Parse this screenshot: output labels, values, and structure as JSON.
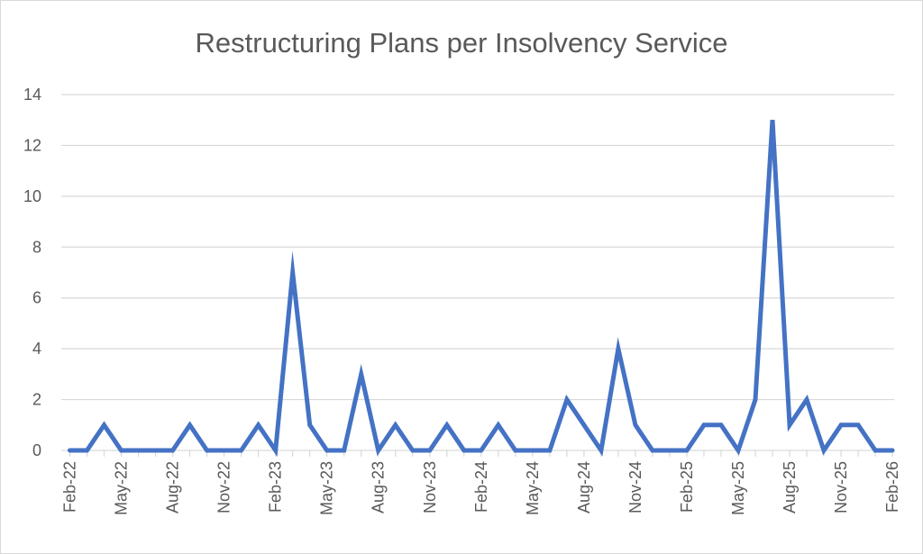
{
  "chart_data": {
    "type": "line",
    "title": "Restructuring Plans per Insolvency Service",
    "xlabel": "",
    "ylabel": "",
    "ylim": [
      0,
      14
    ],
    "yticks": [
      "0",
      "2",
      "4",
      "6",
      "8",
      "10",
      "12",
      "14"
    ],
    "xtick_labels": [
      "Feb-22",
      "May-22",
      "Aug-22",
      "Nov-22",
      "Feb-23",
      "May-23",
      "Aug-23",
      "Nov-23",
      "Feb-24",
      "May-24",
      "Aug-24",
      "Nov-24",
      "Feb-25",
      "May-25",
      "Aug-25",
      "Nov-25",
      "Feb-26"
    ],
    "grid": true,
    "line_color": "#4472C4",
    "x": [
      "Feb-22",
      "Mar-22",
      "Apr-22",
      "May-22",
      "Jun-22",
      "Jul-22",
      "Aug-22",
      "Sep-22",
      "Oct-22",
      "Nov-22",
      "Dec-22",
      "Jan-23",
      "Feb-23",
      "Mar-23",
      "Apr-23",
      "May-23",
      "Jun-23",
      "Jul-23",
      "Aug-23",
      "Sep-23",
      "Oct-23",
      "Nov-23",
      "Dec-23",
      "Jan-24",
      "Feb-24",
      "Mar-24",
      "Apr-24",
      "May-24",
      "Jun-24",
      "Jul-24",
      "Aug-24",
      "Sep-24",
      "Oct-24",
      "Nov-24",
      "Dec-24",
      "Jan-25",
      "Feb-25",
      "Mar-25",
      "Apr-25",
      "May-25",
      "Jun-25",
      "Jul-25",
      "Aug-25",
      "Sep-25",
      "Oct-25",
      "Nov-25",
      "Dec-25",
      "Jan-26",
      "Feb-26"
    ],
    "values": [
      0,
      0,
      1,
      0,
      0,
      0,
      0,
      1,
      0,
      0,
      0,
      1,
      0,
      7,
      1,
      0,
      0,
      3,
      0,
      1,
      0,
      0,
      1,
      0,
      0,
      1,
      0,
      0,
      0,
      2,
      1,
      0,
      4,
      1,
      0,
      0,
      0,
      1,
      1,
      0,
      2,
      13,
      1,
      2,
      0,
      1,
      1,
      0,
      0
    ]
  }
}
